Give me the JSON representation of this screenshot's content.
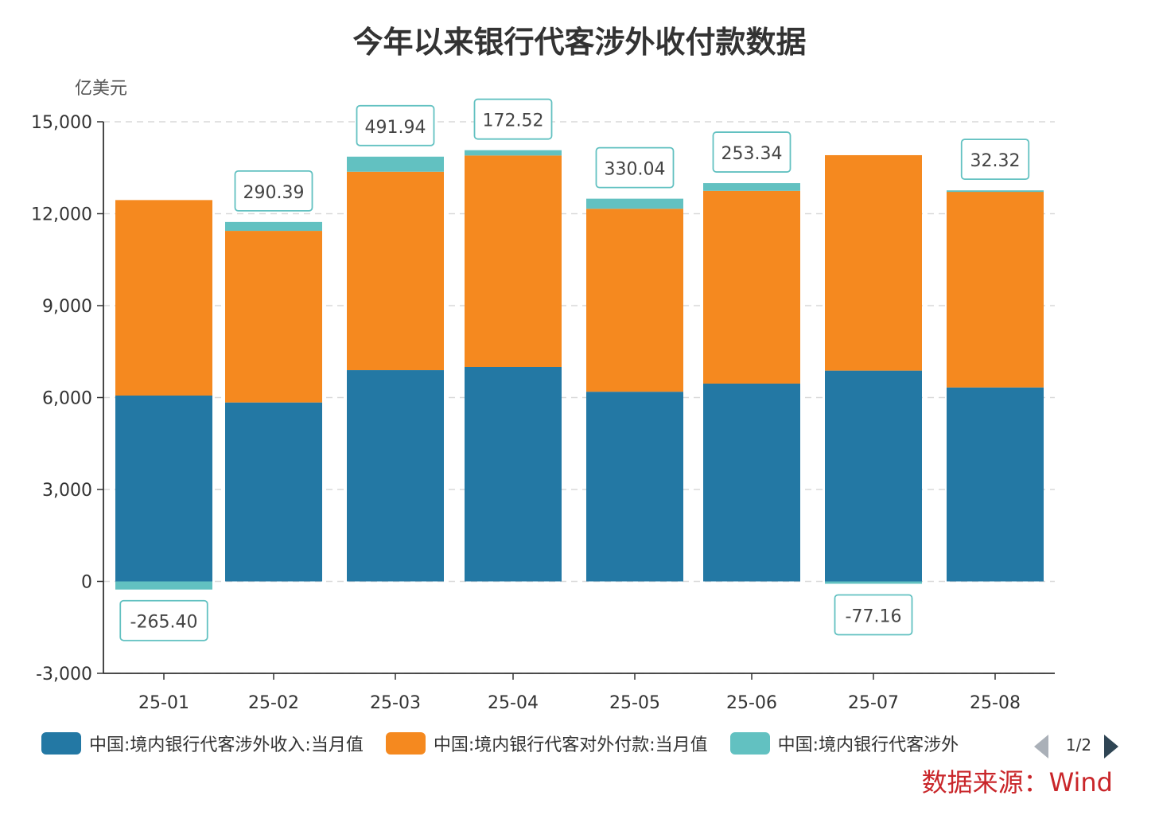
{
  "title": "今年以来银行代客涉外收付款数据",
  "source": "数据来源：Wind",
  "legend_pager": "1/2",
  "legend_items": [
    {
      "label": "中国:境内银行代客涉外收入:当月值",
      "color": "#2378a4"
    },
    {
      "label": "中国:境内银行代客对外付款:当月值",
      "color": "#f5891f"
    },
    {
      "label": "中国:境内银行代客涉外",
      "color": "#62c1c1"
    }
  ],
  "chart_data": {
    "type": "bar",
    "stacked": true,
    "title": "今年以来银行代客涉外收付款数据",
    "ylabel": "亿美元",
    "xlabel": "",
    "ylim": [
      -3000,
      15000
    ],
    "yticks": [
      -3000,
      0,
      3000,
      6000,
      9000,
      12000,
      15000
    ],
    "ytick_labels": [
      "-3,000",
      "0",
      "3,000",
      "6,000",
      "9,000",
      "12,000",
      "15,000"
    ],
    "grid": true,
    "legend_position": "bottom",
    "categories": [
      "25-01",
      "25-02",
      "25-03",
      "25-04",
      "25-05",
      "25-06",
      "25-07",
      "25-08"
    ],
    "series": [
      {
        "name": "中国:境内银行代客涉外收入:当月值",
        "color": "#2378a4",
        "values": [
          6065,
          5840,
          6895,
          7000,
          6190,
          6455,
          6880,
          6330
        ]
      },
      {
        "name": "中国:境内银行代客对外付款:当月值",
        "color": "#f5891f",
        "values": [
          6380,
          5600,
          6475,
          6900,
          5970,
          6290,
          7030,
          6400
        ]
      },
      {
        "name": "中国:境内银行代客涉外",
        "color": "#62c1c1",
        "values": [
          -265.4,
          290.39,
          491.94,
          172.52,
          330.04,
          253.34,
          -77.16,
          32.32
        ],
        "labels": [
          "-265.40",
          "290.39",
          "491.94",
          "172.52",
          "330.04",
          "253.34",
          "-77.16",
          "32.32"
        ]
      }
    ]
  }
}
